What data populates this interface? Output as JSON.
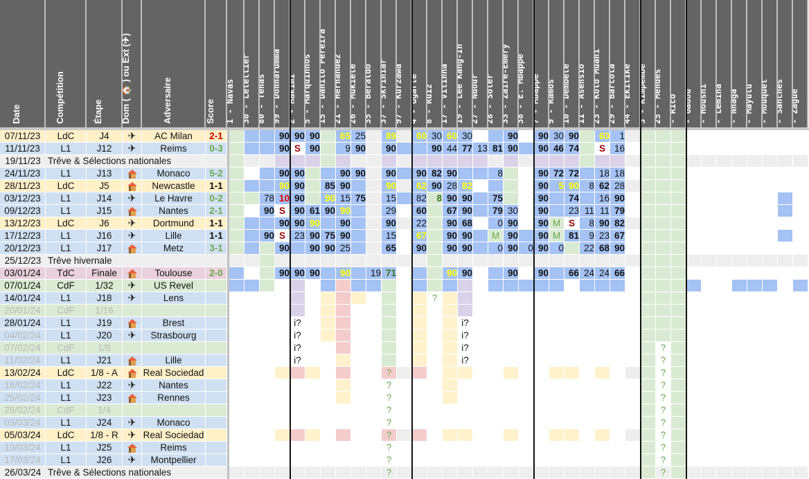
{
  "headers": {
    "date": "Date",
    "competition": "Compétition",
    "stage": "Étape",
    "venue": "Dom ( 🏠 ) ou Ext (✈)",
    "opponent": "Adversaire",
    "score": "Score"
  },
  "players": [
    "1 - Navas",
    "30 - Letellier",
    "80 - Tenas",
    "99 - Donnarumma",
    "2 - Hakimi",
    "5 - Marquinhos",
    "15 - Danilo Pereira",
    "21 - Hernandez",
    "26 - Mukiele",
    "35 - Beraldo",
    "37 - Skriniar",
    "97 - Kurzawa",
    "4 - Ugarte",
    "8 - Ruiz",
    "17 - Vitinha",
    "19 - Lee Kang-In",
    "27 - Ndour",
    "28 - Soler",
    "33 - Zaire-Emery",
    "38 - E. Mbappé",
    "7 - Mbappé",
    "9 - Ramos",
    "10 - Dembélé",
    "11 - Asensio",
    "23 - Kolo Muani",
    "29 - Barcola",
    "44 - Ekitiké",
    "3 - Kimpembe",
    "25 - Mendes",
    "- Rico",
    "- Gadou",
    "- Housni",
    "- Lemina",
    "- Nhaga",
    "- Mayulu",
    "- Mouquet",
    "- Sanches",
    "- Zague"
  ],
  "colors": {
    "ldc": "#fff0c8",
    "l1": "#cfe0f2",
    "cdf": "#dbead3",
    "tdc": "#ead1dc",
    "treve": "#efefef",
    "played": "#a4c2f4",
    "bench": "#d9ead3",
    "susp": "#d9d2e9",
    "injured": "#f4cccc",
    "pending": "#fff2cc",
    "light": "#eeeeee"
  },
  "matches": [
    {
      "date": "07/11/23",
      "comp": "LdC",
      "stage": "J4",
      "venue": "away",
      "opp": "AC Milan",
      "score": "2-1",
      "res": "loss",
      "type": "ldc"
    },
    {
      "date": "11/11/23",
      "comp": "L1",
      "stage": "J12",
      "venue": "away",
      "opp": "Reims",
      "score": "0-3",
      "res": "win",
      "type": "l1"
    },
    {
      "date": "19/11/23",
      "comp": "Trêve & Sélections nationales",
      "type": "treve"
    },
    {
      "date": "24/11/23",
      "comp": "L1",
      "stage": "J13",
      "venue": "home",
      "opp": "Monaco",
      "score": "5-2",
      "res": "win",
      "type": "l1"
    },
    {
      "date": "28/11/23",
      "comp": "LdC",
      "stage": "J5",
      "venue": "home",
      "opp": "Newcastle",
      "score": "1-1",
      "res": "draw",
      "type": "ldc"
    },
    {
      "date": "03/12/23",
      "comp": "L1",
      "stage": "J14",
      "venue": "away",
      "opp": "Le Havre",
      "score": "0-2",
      "res": "win",
      "type": "l1"
    },
    {
      "date": "09/12/23",
      "comp": "L1",
      "stage": "J15",
      "venue": "home",
      "opp": "Nantes",
      "score": "2-1",
      "res": "win",
      "type": "l1"
    },
    {
      "date": "13/12/23",
      "comp": "LdC",
      "stage": "J6",
      "venue": "away",
      "opp": "Dortmund",
      "score": "1-1",
      "res": "draw",
      "type": "ldc"
    },
    {
      "date": "17/12/23",
      "comp": "L1",
      "stage": "J16",
      "venue": "away",
      "opp": "Lille",
      "score": "1-1",
      "res": "draw",
      "type": "l1"
    },
    {
      "date": "20/12/23",
      "comp": "L1",
      "stage": "J17",
      "venue": "home",
      "opp": "Metz",
      "score": "3-1",
      "res": "win",
      "type": "l1"
    },
    {
      "date": "25/12/23",
      "comp": "Trêve hivernale",
      "type": "treve"
    },
    {
      "date": "03/01/24",
      "comp": "TdC",
      "stage": "Finale",
      "venue": "home",
      "opp": "Toulouse",
      "score": "2-0",
      "res": "win",
      "type": "tdc"
    },
    {
      "date": "07/01/24",
      "comp": "CdF",
      "stage": "1/32",
      "venue": "away",
      "opp": "US Revel",
      "score": "",
      "type": "cdf"
    },
    {
      "date": "14/01/24",
      "comp": "L1",
      "stage": "J18",
      "venue": "away",
      "opp": "Lens",
      "score": "",
      "type": "l1"
    },
    {
      "date": "20/01/24",
      "comp": "CdF",
      "stage": "1/16",
      "venue": "",
      "opp": "",
      "score": "",
      "type": "cdf",
      "dim": true
    },
    {
      "date": "28/01/24",
      "comp": "L1",
      "stage": "J19",
      "venue": "home",
      "opp": "Brest",
      "score": "",
      "type": "l1"
    },
    {
      "date": "04/02/24",
      "comp": "L1",
      "stage": "J20",
      "venue": "away",
      "opp": "Strasbourg",
      "score": "",
      "type": "l1",
      "dimdate": true
    },
    {
      "date": "07/02/24",
      "comp": "CdF",
      "stage": "1/8",
      "venue": "",
      "opp": "",
      "score": "",
      "type": "cdf",
      "dim": true
    },
    {
      "date": "11/02/24",
      "comp": "L1",
      "stage": "J21",
      "venue": "home",
      "opp": "Lille",
      "score": "",
      "type": "l1",
      "dimdate": true
    },
    {
      "date": "13/02/24",
      "comp": "LdC",
      "stage": "1/8 - A",
      "venue": "home",
      "opp": "Real Sociedad",
      "score": "",
      "type": "ldc"
    },
    {
      "date": "18/02/24",
      "comp": "L1",
      "stage": "J22",
      "venue": "away",
      "opp": "Nantes",
      "score": "",
      "type": "l1",
      "dimdate": true
    },
    {
      "date": "25/02/24",
      "comp": "L1",
      "stage": "J23",
      "venue": "home",
      "opp": "Rennes",
      "score": "",
      "type": "l1",
      "dimdate": true
    },
    {
      "date": "28/02/24",
      "comp": "CdF",
      "stage": "1/4",
      "venue": "",
      "opp": "",
      "score": "",
      "type": "cdf",
      "dim": true
    },
    {
      "date": "03/03/24",
      "comp": "L1",
      "stage": "J24",
      "venue": "away",
      "opp": "Monaco",
      "score": "",
      "type": "l1",
      "dimdate": true
    },
    {
      "date": "05/03/24",
      "comp": "LdC",
      "stage": "1/8 - R",
      "venue": "away",
      "opp": "Real Sociedad",
      "score": "",
      "type": "ldc"
    },
    {
      "date": "10/03/24",
      "comp": "L1",
      "stage": "J25",
      "venue": "home",
      "opp": "Reims",
      "score": "",
      "type": "l1",
      "dimdate": true
    },
    {
      "date": "17/03/24",
      "comp": "L1",
      "stage": "J26",
      "venue": "away",
      "opp": "Montpellier",
      "score": "",
      "type": "l1",
      "dimdate": true
    },
    {
      "date": "26/03/24",
      "comp": "Trêve & Sélections nationales",
      "type": "treve"
    }
  ],
  "grid": [
    [
      "g",
      "p",
      "p",
      "p:90:b",
      "p:90:b",
      "p:90:b",
      "g",
      "p:65:y",
      "p:25",
      "l",
      "p:89:y",
      "l",
      "p:60:y",
      "p:30",
      "p:60:y",
      "p:30",
      "w",
      "p",
      "p:90:b",
      "w",
      "p:90:b",
      "p:30",
      "p:90:b",
      "g",
      "p:60:y",
      "p:1",
      "l",
      "g",
      "g",
      "g",
      "w",
      "w",
      "w",
      "w",
      "w",
      "w",
      "w",
      "w"
    ],
    [
      "g",
      "p",
      "p",
      "p:90:b",
      "w:S:s",
      "p:90:b",
      "g",
      "p:9",
      "p:90:b",
      "l",
      "p:90:b",
      "p",
      "p",
      "p:90:b",
      "p:44",
      "p:77:b",
      "p:13",
      "p:81:b",
      "p:90:b",
      "p",
      "p:90:b",
      "p:46:b",
      "p:74:b",
      "g",
      "w:S:s",
      "p:16",
      "w",
      "g",
      "g",
      "g",
      "w",
      "w",
      "w",
      "w",
      "w",
      "w",
      "w",
      "w"
    ],
    [
      "g",
      "l",
      "l",
      "u",
      "u",
      "u",
      "g",
      "u",
      "l",
      "l",
      "u",
      "l",
      "u",
      "u",
      "u",
      "u",
      "u",
      "l",
      "u",
      "l",
      "u",
      "u",
      "u",
      "g",
      "u",
      "u",
      "l",
      "g",
      "g",
      "g",
      "l",
      "l",
      "l",
      "l",
      "l",
      "l",
      "l",
      "l"
    ],
    [
      "g",
      "w",
      "p",
      "p:90:b",
      "p:90:b",
      "g",
      "p",
      "p:90:b",
      "p:90:b",
      "l",
      "p:90:b",
      "p",
      "p:90:b",
      "p:82:b",
      "p:90:b",
      "p",
      "p",
      "p:8",
      "g",
      "w",
      "p:90:b",
      "p:72:b",
      "p:72:b",
      "p",
      "p:18",
      "p:18",
      "w",
      "g",
      "g",
      "g",
      "w",
      "w",
      "w",
      "w",
      "w",
      "w",
      "w",
      "w"
    ],
    [
      "g",
      "p",
      "p",
      "p:90:y",
      "p:90:b",
      "g",
      "p:85:b",
      "p:90:b",
      "p",
      "l",
      "p:90:y",
      "l",
      "p:62:y",
      "p:90:b",
      "p:28",
      "p:82:y",
      "w",
      "p",
      "g",
      "w",
      "p:90:b",
      "p:5:y",
      "p:90:y",
      "p:8",
      "p:62:b",
      "p:28",
      "l",
      "g",
      "g",
      "g",
      "w",
      "w",
      "w",
      "w",
      "w",
      "w",
      "w",
      "w"
    ],
    [
      "g",
      "g",
      "p:78",
      "p:10:r",
      "p:90:b",
      "g",
      "p:90:y",
      "p:15",
      "p:75:b",
      "l",
      "p:15",
      "p",
      "p:82",
      "g:8:gb",
      "p:90:b",
      "p:90:b",
      "p",
      "p:75:b",
      "g",
      "w",
      "p:90:b",
      "p",
      "p:74:b",
      "p",
      "p:16",
      "p:90:b",
      "w",
      "g",
      "g",
      "g",
      "w",
      "w",
      "w",
      "w",
      "w",
      "w",
      "p",
      "w"
    ],
    [
      "g",
      "w",
      "p:90:b",
      "w:S:s",
      "p:90:b",
      "p:61:b",
      "p:90:b",
      "p:90:y",
      "p",
      "l",
      "p:29",
      "w",
      "p:60:b",
      "g",
      "p:67:b",
      "p:90:b",
      "p",
      "p:79:b",
      "p:30",
      "w",
      "p:90:b",
      "p",
      "p:23",
      "p:11",
      "p:11",
      "p:79:b",
      "w",
      "g",
      "g",
      "g",
      "w",
      "w",
      "w",
      "w",
      "w",
      "w",
      "p",
      "w"
    ],
    [
      "g",
      "p",
      "p",
      "p:90:b",
      "p:90:b",
      "p:90:y",
      "p",
      "p:90:b",
      "p",
      "l",
      "p:90:b",
      "l",
      "p:22",
      "g",
      "p:90:b",
      "p:68:b",
      "w",
      "p:0",
      "p:90:b",
      "w",
      "p:90:b",
      "g:M:m",
      "w:S:s",
      "p:8",
      "p:90:b",
      "p:82:b",
      "l",
      "g",
      "g",
      "g",
      "w",
      "w",
      "w",
      "w",
      "w",
      "w",
      "w",
      "w"
    ],
    [
      "g",
      "p",
      "p:90:b",
      "w:S:s",
      "p:23",
      "p:90:b",
      "p:75:b",
      "p:90:b",
      "p",
      "l",
      "p:15",
      "w",
      "p:67:y",
      "g",
      "p:90:b",
      "p:90:b",
      "p",
      "g:M:m",
      "p:90:b",
      "p",
      "p:90:b",
      "g:M:m",
      "p:81:b",
      "p:9",
      "p:23",
      "p:67:b",
      "w",
      "g",
      "g",
      "g",
      "w",
      "w",
      "w",
      "w",
      "w",
      "w",
      "p",
      "w"
    ],
    [
      "g",
      "p",
      "g",
      "p:90:b",
      "p",
      "p:90:b",
      "p:90:b",
      "p:25",
      "p",
      "l",
      "p:65:b",
      "w",
      "p:90:b",
      "g",
      "p:90:b",
      "p:90:b",
      "p",
      "p:0",
      "p:90:b",
      "p:0",
      "p:90:b",
      "p:0",
      "g",
      "p:22",
      "p:68:b",
      "p:90:b",
      "w",
      "g",
      "g",
      "g",
      "w",
      "w",
      "w",
      "w",
      "w",
      "w",
      "w",
      "w"
    ],
    [
      "l",
      "l",
      "g",
      "l",
      "l",
      "l",
      "l",
      "l",
      "l",
      "l",
      "l",
      "l",
      "l",
      "g",
      "l",
      "l",
      "l",
      "l",
      "l",
      "l",
      "l",
      "l",
      "l",
      "l",
      "l",
      "l",
      "l",
      "g",
      "g",
      "g",
      "l",
      "l",
      "l",
      "l",
      "l",
      "l",
      "l",
      "l"
    ],
    [
      "p",
      "w",
      "g",
      "p:90:b",
      "p:90:b",
      "p:90:b",
      "p",
      "p:90:y",
      "p",
      "p:19",
      "p:71:gb",
      "w",
      "p",
      "g",
      "p:90:y",
      "p:90:b",
      "w",
      "p",
      "p:90:b",
      "w",
      "p:90:b",
      "p",
      "p:66:b",
      "p:24",
      "p:24",
      "p:66:b",
      "w",
      "g",
      "g",
      "g",
      "w",
      "w",
      "w",
      "w",
      "w",
      "w",
      "w",
      "w"
    ],
    [
      "p",
      "p",
      "g",
      "w",
      "u",
      "w",
      "p",
      "i",
      "p",
      "p",
      "g",
      "w",
      "p",
      "g",
      "p",
      "u",
      "w",
      "p",
      "p",
      "p",
      "p",
      "p",
      "w",
      "p",
      "p",
      "p",
      "w",
      "g",
      "g",
      "g",
      "p",
      "w",
      "w",
      "p",
      "p",
      "p",
      "w",
      "p"
    ],
    [
      "w",
      "w",
      "w",
      "w",
      "u",
      "w",
      "y",
      "i",
      "y",
      "w",
      "g",
      "w",
      "y",
      "w:?:q",
      "y",
      "u",
      "w",
      "w",
      "w",
      "w",
      "w",
      "w",
      "w",
      "w",
      "w",
      "w",
      "w",
      "g",
      "g",
      "g",
      "w",
      "w",
      "w",
      "w",
      "w",
      "w",
      "w",
      "w"
    ],
    [
      "w",
      "w",
      "w",
      "w",
      "u",
      "w",
      "y",
      "i",
      "w",
      "w",
      "g",
      "w",
      "y",
      "w",
      "y",
      "u",
      "w",
      "w",
      "w",
      "w",
      "w",
      "w",
      "w",
      "w",
      "w",
      "w",
      "w",
      "g",
      "g",
      "g",
      "w",
      "w",
      "w",
      "w",
      "w",
      "w",
      "w",
      "w"
    ],
    [
      "w",
      "w",
      "w",
      "w",
      "w:i?:n",
      "w",
      "y",
      "i",
      "w",
      "w",
      "g",
      "w",
      "y",
      "w",
      "y",
      "w:i?:n",
      "w",
      "w",
      "w",
      "w",
      "w",
      "w",
      "w",
      "w",
      "w",
      "w",
      "w",
      "g",
      "g",
      "g",
      "w",
      "w",
      "w",
      "w",
      "w",
      "w",
      "w",
      "w"
    ],
    [
      "w",
      "w",
      "w",
      "w",
      "w:i?:n",
      "w",
      "y",
      "i",
      "w",
      "w",
      "g",
      "w",
      "y",
      "w",
      "y",
      "w:i?:n",
      "w",
      "w",
      "w",
      "w",
      "w",
      "w",
      "w",
      "w",
      "w",
      "w",
      "w",
      "g",
      "g",
      "g",
      "w",
      "w",
      "w",
      "w",
      "w",
      "w",
      "w",
      "w"
    ],
    [
      "w",
      "w",
      "w",
      "w",
      "w:i?:n",
      "w",
      "w",
      "i",
      "w",
      "w",
      "g",
      "w",
      "y",
      "w",
      "y",
      "w:i?:n",
      "w",
      "w",
      "w",
      "w",
      "w",
      "w",
      "w",
      "w",
      "w",
      "w",
      "w",
      "g",
      "w:?:q",
      "g",
      "w",
      "w",
      "w",
      "w",
      "w",
      "w",
      "w",
      "w"
    ],
    [
      "w",
      "w",
      "w",
      "w",
      "w:i?:n",
      "w",
      "w",
      "y",
      "w",
      "w",
      "g",
      "w",
      "y",
      "w",
      "y",
      "w:i?:n",
      "w",
      "w",
      "w",
      "w",
      "w",
      "w",
      "w",
      "w",
      "w",
      "w",
      "w",
      "g",
      "w:?:q",
      "g",
      "w",
      "w",
      "w",
      "w",
      "w",
      "w",
      "w",
      "w"
    ],
    [
      "w",
      "w",
      "w",
      "y",
      "i",
      "y",
      "w",
      "i",
      "w",
      "w",
      "i:?:q",
      "l",
      "i",
      "w",
      "y",
      "y",
      "w",
      "w",
      "y",
      "w",
      "w",
      "y",
      "y",
      "w",
      "y",
      "w",
      "l",
      "g",
      "w:?:q",
      "g",
      "w",
      "w",
      "w",
      "w",
      "w",
      "w",
      "w",
      "w"
    ],
    [
      "w",
      "w",
      "w",
      "w",
      "w",
      "w",
      "w",
      "y",
      "w",
      "w",
      "w:?:q",
      "w",
      "w",
      "w",
      "y",
      "w",
      "w",
      "w",
      "w",
      "w",
      "w",
      "w",
      "w",
      "w",
      "w",
      "w",
      "w",
      "g",
      "w:?:q",
      "g",
      "w",
      "w",
      "w",
      "w",
      "w",
      "w",
      "w",
      "w"
    ],
    [
      "w",
      "w",
      "w",
      "w",
      "w",
      "w",
      "w",
      "y",
      "w",
      "w",
      "w:?:q",
      "w",
      "w",
      "w",
      "y",
      "w",
      "w",
      "w",
      "w",
      "w",
      "w",
      "w",
      "w",
      "w",
      "w",
      "w",
      "w",
      "g",
      "w:?:q",
      "g",
      "w",
      "w",
      "w",
      "w",
      "w",
      "w",
      "w",
      "w"
    ],
    [
      "w",
      "w",
      "w",
      "w",
      "w",
      "w",
      "w",
      "w",
      "w",
      "w",
      "w:?:q",
      "w",
      "w",
      "w",
      "w",
      "w",
      "w",
      "w",
      "w",
      "w",
      "w",
      "w",
      "w",
      "w",
      "w",
      "w",
      "w",
      "g",
      "w:?:q",
      "g",
      "w",
      "w",
      "w",
      "w",
      "w",
      "w",
      "w",
      "w"
    ],
    [
      "w",
      "w",
      "w",
      "w",
      "w",
      "w",
      "w",
      "w",
      "w",
      "w",
      "w:?:q",
      "w",
      "w",
      "w",
      "w",
      "w",
      "w",
      "w",
      "w",
      "w",
      "w",
      "w",
      "w",
      "w",
      "w",
      "w",
      "w",
      "g",
      "w:?:q",
      "g",
      "w",
      "w",
      "w",
      "w",
      "w",
      "w",
      "w",
      "w"
    ],
    [
      "w",
      "w",
      "w",
      "y",
      "i",
      "y",
      "w",
      "i",
      "w",
      "w",
      "i:?:q",
      "l",
      "i",
      "w",
      "y",
      "y",
      "w",
      "w",
      "y",
      "w",
      "w",
      "y",
      "y",
      "w",
      "y",
      "w",
      "l",
      "g",
      "w:?:q",
      "g",
      "w",
      "w",
      "w",
      "w",
      "w",
      "w",
      "w",
      "w"
    ],
    [
      "w",
      "w",
      "w",
      "w",
      "w",
      "w",
      "w",
      "w",
      "w",
      "w",
      "w:?:q",
      "w",
      "w",
      "w",
      "w",
      "w",
      "w",
      "w",
      "w",
      "w",
      "w",
      "w",
      "w",
      "w",
      "w",
      "w",
      "w",
      "g",
      "w:?:q",
      "g",
      "w",
      "w",
      "w",
      "w",
      "w",
      "w",
      "w",
      "w"
    ],
    [
      "w",
      "w",
      "w",
      "w",
      "w",
      "w",
      "w",
      "w",
      "w",
      "w",
      "w:?:q",
      "w",
      "w",
      "w",
      "w",
      "w",
      "w",
      "w",
      "w",
      "w",
      "w",
      "w",
      "w",
      "w",
      "w",
      "w",
      "w",
      "g",
      "w:?:q",
      "g",
      "w",
      "w",
      "w",
      "w",
      "w",
      "w",
      "w",
      "w"
    ],
    [
      "l",
      "l",
      "l",
      "l",
      "l",
      "l",
      "l",
      "l",
      "l",
      "l",
      "l:?:q",
      "l",
      "l",
      "l",
      "l",
      "l",
      "l",
      "l",
      "l",
      "l",
      "l",
      "l",
      "l",
      "l",
      "l",
      "l",
      "l",
      "g",
      "l:?:q",
      "g",
      "l",
      "l",
      "l",
      "l",
      "l",
      "l",
      "l",
      "l"
    ]
  ]
}
